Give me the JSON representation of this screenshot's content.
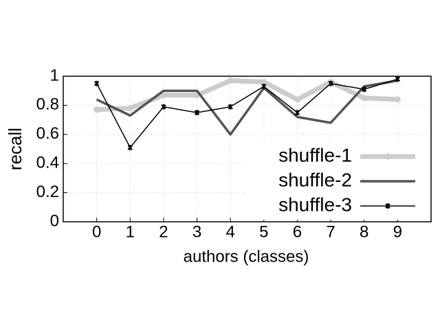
{
  "chart_data": {
    "type": "line",
    "x_label": "authors (classes)",
    "y_label": "recall",
    "x": [
      0,
      1,
      2,
      3,
      4,
      5,
      6,
      7,
      8,
      9
    ],
    "series": [
      {
        "name": "shuffle-1",
        "color": "#cccccc",
        "values": [
          0.77,
          0.78,
          0.87,
          0.87,
          0.97,
          0.96,
          0.84,
          0.96,
          0.85,
          0.84
        ]
      },
      {
        "name": "shuffle-2",
        "color": "#555555",
        "values": [
          0.84,
          0.73,
          0.9,
          0.9,
          0.6,
          0.92,
          0.72,
          0.68,
          0.93,
          0.97
        ]
      },
      {
        "name": "shuffle-3",
        "color": "#000000",
        "values": [
          0.95,
          0.51,
          0.79,
          0.75,
          0.79,
          0.93,
          0.75,
          0.95,
          0.91,
          0.98
        ]
      }
    ],
    "xlim": [
      -1,
      10
    ],
    "xticks": [
      0,
      1,
      2,
      3,
      4,
      5,
      6,
      7,
      8,
      9
    ],
    "ylim": [
      0,
      1
    ],
    "yticks": [
      0,
      0.2,
      0.4,
      0.6,
      0.8,
      1
    ],
    "grid": true,
    "legend": "lower right"
  }
}
